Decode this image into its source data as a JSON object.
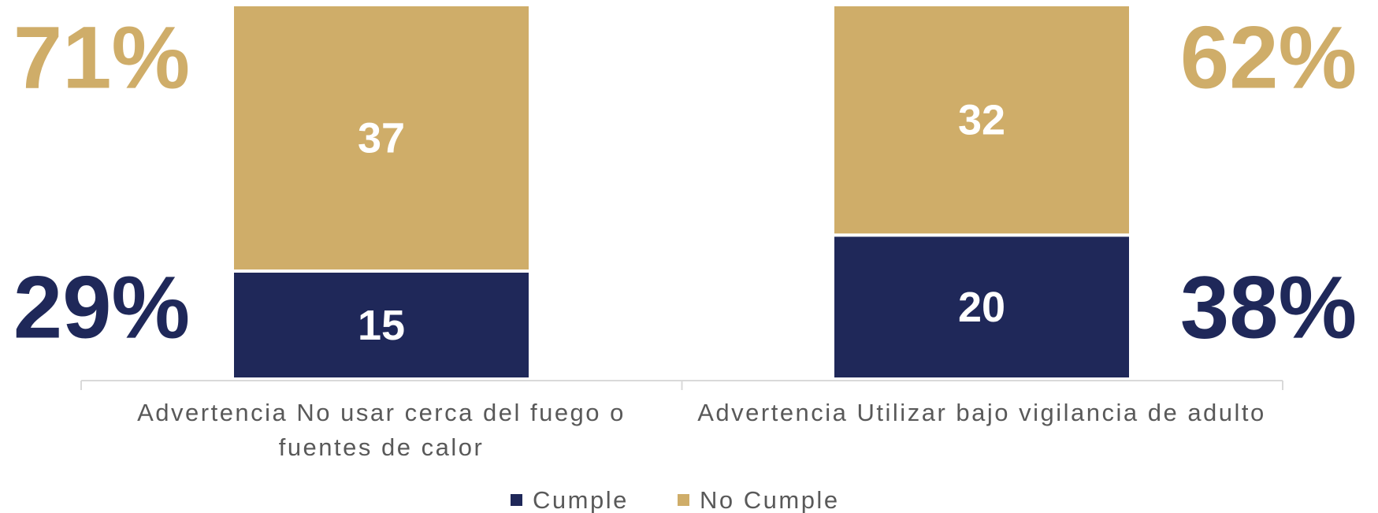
{
  "chart_data": {
    "type": "stacked_bar",
    "categories": [
      "Advertencia No usar cerca del fuego o fuentes de calor",
      "Advertencia Utilizar bajo vigilancia de adulto"
    ],
    "series": [
      {
        "name": "Cumple",
        "color": "#1f2859",
        "values": [
          15,
          20
        ],
        "percent_labels": [
          "29%",
          "38%"
        ]
      },
      {
        "name": "No Cumple",
        "color": "#cfad69",
        "values": [
          37,
          32
        ],
        "percent_labels": [
          "71%",
          "62%"
        ]
      }
    ],
    "legend": "bottom"
  }
}
